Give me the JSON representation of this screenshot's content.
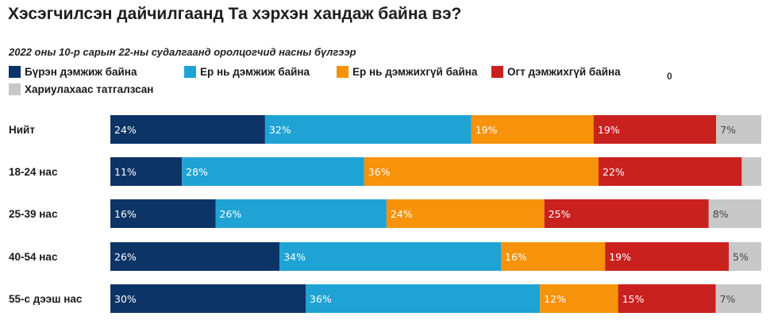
{
  "title": "Хэсэгчилсэн дайчилгаанд Та хэрхэн хандаж байна вэ?",
  "subtitle": "2022 оны 10-р сарын 22-ны судалгаанд оролцогчид насны бүлгээр",
  "legend_note": "0",
  "chart_data": {
    "type": "bar",
    "orientation": "horizontal",
    "stacked": true,
    "unit": "%",
    "categories": [
      "Нийт",
      "18-24 нас",
      "25-39 нас",
      "40-54 нас",
      "55-с дээш нас"
    ],
    "series": [
      {
        "name": "Бүрэн дэмжиж байна",
        "color": "#0d3466",
        "values": [
          24,
          11,
          16,
          26,
          30
        ]
      },
      {
        "name": "Ер нь дэмжиж байна",
        "color": "#1ea3d4",
        "values": [
          32,
          28,
          26,
          34,
          36
        ]
      },
      {
        "name": "Ер нь дэмжихгүй байна",
        "color": "#f7920b",
        "values": [
          19,
          36,
          24,
          16,
          12
        ]
      },
      {
        "name": "Огт дэмжихгүй байна",
        "color": "#c9211e",
        "values": [
          19,
          22,
          25,
          19,
          15
        ]
      },
      {
        "name": "Хариулахаас татгалзсан",
        "color": "#c8c8c8",
        "values": [
          7,
          3,
          8,
          5,
          7
        ]
      }
    ],
    "data_labels": [
      [
        "24%",
        "32%",
        "19%",
        "19%",
        "7%"
      ],
      [
        "11%",
        "28%",
        "36%",
        "22%",
        ""
      ],
      [
        "16%",
        "26%",
        "24%",
        "25%",
        "8%"
      ],
      [
        "26%",
        "34%",
        "16%",
        "19%",
        "5%"
      ],
      [
        "30%",
        "36%",
        "12%",
        "15%",
        "7%"
      ]
    ],
    "label_colors": [
      "#ffffff",
      "#ffffff",
      "#ffffff",
      "#ffffff",
      "#444444"
    ]
  }
}
